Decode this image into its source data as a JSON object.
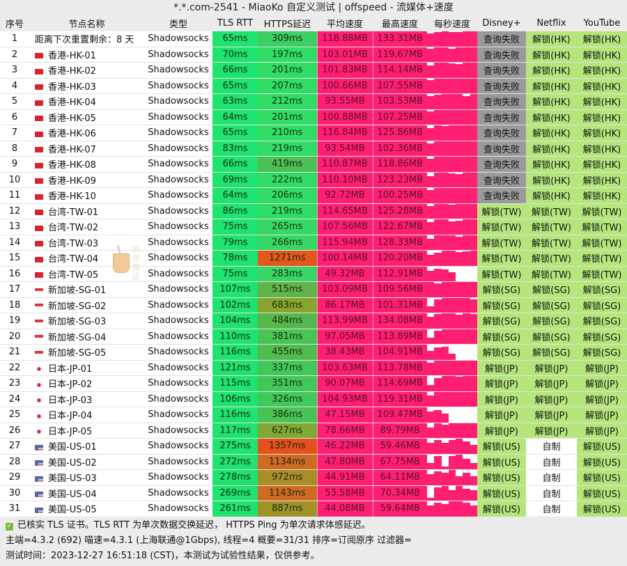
{
  "window": {
    "title": "*.*.com-2541 - MiaoKo 自定义测试 | offspeed - 流媒体+速度"
  },
  "columns": [
    "序号",
    "节点名称",
    "类型",
    "TLS RTT",
    "HTTPS延迟",
    "平均速度",
    "最高速度",
    "每秒速度",
    "Disney+",
    "Netflix",
    "YouTube"
  ],
  "colors": {
    "tls_green": "#1fe36f",
    "https_green": "#3ad36a",
    "https_olive": "#8aa52e",
    "https_orange": "#e2581c",
    "speed_pink": "#ff1f72",
    "fail_gray": "#9a9a9a",
    "unlock_green": "#b5e67c",
    "selfmade_white": "#ffffff"
  },
  "rows": [
    {
      "idx": "1",
      "flag": "",
      "name": "距离下次重置剩余：8 天",
      "type": "Shadowsocks",
      "tls": "65ms",
      "https": "309ms",
      "https_color": "#3bcf64",
      "avg": "118.88MB",
      "max": "133.31MB",
      "spark": [
        88,
        96,
        100,
        94,
        94,
        100,
        100
      ],
      "disney": "查询失败",
      "disney_color": "#9a9a9a",
      "netflix": "解锁(HK)",
      "netflix_color": "#b5e67c",
      "youtube": "解锁(HK)",
      "youtube_color": "#b5e67c"
    },
    {
      "idx": "2",
      "flag": "hk",
      "name": "香港-HK-01",
      "type": "Shadowsocks",
      "tls": "70ms",
      "https": "197ms",
      "https_color": "#2fdc66",
      "avg": "103.01MB",
      "max": "119.67MB",
      "spark": [
        88,
        100,
        100,
        90,
        100,
        100,
        100
      ],
      "disney": "查询失败",
      "disney_color": "#9a9a9a",
      "netflix": "解锁(HK)",
      "netflix_color": "#b5e67c",
      "youtube": "解锁(HK)",
      "youtube_color": "#b5e67c"
    },
    {
      "idx": "3",
      "flag": "hk",
      "name": "香港-HK-02",
      "type": "Shadowsocks",
      "tls": "66ms",
      "https": "201ms",
      "https_color": "#2fdc66",
      "avg": "101.83MB",
      "max": "114.14MB",
      "spark": [
        82,
        100,
        100,
        96,
        90,
        100,
        100
      ],
      "disney": "查询失败",
      "disney_color": "#9a9a9a",
      "netflix": "解锁(HK)",
      "netflix_color": "#b5e67c",
      "youtube": "解锁(HK)",
      "youtube_color": "#b5e67c"
    },
    {
      "idx": "4",
      "flag": "hk",
      "name": "香港-HK-03",
      "type": "Shadowsocks",
      "tls": "65ms",
      "https": "207ms",
      "https_color": "#2fdc66",
      "avg": "100.66MB",
      "max": "107.55MB",
      "spark": [
        88,
        100,
        100,
        100,
        100,
        100,
        100
      ],
      "disney": "查询失败",
      "disney_color": "#9a9a9a",
      "netflix": "解锁(HK)",
      "netflix_color": "#b5e67c",
      "youtube": "解锁(HK)",
      "youtube_color": "#b5e67c"
    },
    {
      "idx": "5",
      "flag": "hk",
      "name": "香港-HK-04",
      "type": "Shadowsocks",
      "tls": "63ms",
      "https": "212ms",
      "https_color": "#2fdc66",
      "avg": "93.55MB",
      "max": "103.53MB",
      "spark": [
        84,
        96,
        100,
        100,
        100,
        88,
        100
      ],
      "disney": "查询失败",
      "disney_color": "#9a9a9a",
      "netflix": "解锁(HK)",
      "netflix_color": "#b5e67c",
      "youtube": "解锁(HK)",
      "youtube_color": "#b5e67c"
    },
    {
      "idx": "6",
      "flag": "hk",
      "name": "香港-HK-05",
      "type": "Shadowsocks",
      "tls": "64ms",
      "https": "201ms",
      "https_color": "#2fdc66",
      "avg": "100.88MB",
      "max": "107.25MB",
      "spark": [
        88,
        100,
        100,
        100,
        100,
        100,
        100
      ],
      "disney": "查询失败",
      "disney_color": "#9a9a9a",
      "netflix": "解锁(HK)",
      "netflix_color": "#b5e67c",
      "youtube": "解锁(HK)",
      "youtube_color": "#b5e67c"
    },
    {
      "idx": "7",
      "flag": "hk",
      "name": "香港-HK-06",
      "type": "Shadowsocks",
      "tls": "65ms",
      "https": "210ms",
      "https_color": "#2fdc66",
      "avg": "116.84MB",
      "max": "125.86MB",
      "spark": [
        80,
        100,
        96,
        100,
        100,
        100,
        100
      ],
      "disney": "查询失败",
      "disney_color": "#9a9a9a",
      "netflix": "解锁(HK)",
      "netflix_color": "#b5e67c",
      "youtube": "解锁(HK)",
      "youtube_color": "#b5e67c"
    },
    {
      "idx": "8",
      "flag": "hk",
      "name": "香港-HK-07",
      "type": "Shadowsocks",
      "tls": "83ms",
      "https": "219ms",
      "https_color": "#2fdc66",
      "avg": "93.54MB",
      "max": "102.36MB",
      "spark": [
        84,
        100,
        100,
        100,
        100,
        100,
        100
      ],
      "disney": "查询失败",
      "disney_color": "#9a9a9a",
      "netflix": "解锁(HK)",
      "netflix_color": "#b5e67c",
      "youtube": "解锁(HK)",
      "youtube_color": "#b5e67c"
    },
    {
      "idx": "9",
      "flag": "hk",
      "name": "香港-HK-08",
      "type": "Shadowsocks",
      "tls": "66ms",
      "https": "419ms",
      "https_color": "#4cbf55",
      "avg": "110.87MB",
      "max": "118.86MB",
      "spark": [
        84,
        100,
        100,
        100,
        100,
        100,
        100
      ],
      "disney": "查询失败",
      "disney_color": "#9a9a9a",
      "netflix": "解锁(HK)",
      "netflix_color": "#b5e67c",
      "youtube": "解锁(HK)",
      "youtube_color": "#b5e67c"
    },
    {
      "idx": "10",
      "flag": "hk",
      "name": "香港-HK-09",
      "type": "Shadowsocks",
      "tls": "69ms",
      "https": "222ms",
      "https_color": "#2fdc66",
      "avg": "110.10MB",
      "max": "123.23MB",
      "spark": [
        76,
        100,
        100,
        94,
        88,
        100,
        100
      ],
      "disney": "查询失败",
      "disney_color": "#9a9a9a",
      "netflix": "解锁(HK)",
      "netflix_color": "#b5e67c",
      "youtube": "解锁(HK)",
      "youtube_color": "#b5e67c"
    },
    {
      "idx": "11",
      "flag": "hk",
      "name": "香港-HK-10",
      "type": "Shadowsocks",
      "tls": "64ms",
      "https": "206ms",
      "https_color": "#2fdc66",
      "avg": "92.72MB",
      "max": "100.25MB",
      "spark": [
        84,
        100,
        100,
        100,
        100,
        100,
        100
      ],
      "disney": "查询失败",
      "disney_color": "#9a9a9a",
      "netflix": "解锁(HK)",
      "netflix_color": "#b5e67c",
      "youtube": "解锁(HK)",
      "youtube_color": "#b5e67c"
    },
    {
      "idx": "12",
      "flag": "tw",
      "name": "台湾-TW-01",
      "type": "Shadowsocks",
      "tls": "86ms",
      "https": "219ms",
      "https_color": "#2fdc66",
      "avg": "114.65MB",
      "max": "125.28MB",
      "spark": [
        86,
        100,
        100,
        92,
        100,
        100,
        100
      ],
      "disney": "解锁(TW)",
      "disney_color": "#b5e67c",
      "netflix": "解锁(TW)",
      "netflix_color": "#b5e67c",
      "youtube": "解锁(TW)",
      "youtube_color": "#b5e67c"
    },
    {
      "idx": "13",
      "flag": "tw",
      "name": "台湾-TW-02",
      "type": "Shadowsocks",
      "tls": "75ms",
      "https": "265ms",
      "https_color": "#36d865",
      "avg": "107.56MB",
      "max": "122.67MB",
      "spark": [
        80,
        100,
        100,
        88,
        90,
        100,
        100
      ],
      "disney": "解锁(TW)",
      "disney_color": "#b5e67c",
      "netflix": "解锁(TW)",
      "netflix_color": "#b5e67c",
      "youtube": "解锁(TW)",
      "youtube_color": "#b5e67c"
    },
    {
      "idx": "14",
      "flag": "tw",
      "name": "台湾-TW-03",
      "type": "Shadowsocks",
      "tls": "79ms",
      "https": "266ms",
      "https_color": "#36d865",
      "avg": "115.94MB",
      "max": "128.33MB",
      "spark": [
        76,
        100,
        100,
        100,
        90,
        100,
        100
      ],
      "disney": "解锁(TW)",
      "disney_color": "#b5e67c",
      "netflix": "解锁(TW)",
      "netflix_color": "#b5e67c",
      "youtube": "解锁(TW)",
      "youtube_color": "#b5e67c"
    },
    {
      "idx": "15",
      "flag": "tw",
      "name": "台湾-TW-04",
      "type": "Shadowsocks",
      "tls": "78ms",
      "https": "1271ms",
      "https_color": "#e2581c",
      "avg": "100.14MB",
      "max": "120.20MB",
      "spark": [
        70,
        86,
        100,
        100,
        90,
        96,
        100
      ],
      "disney": "解锁(TW)",
      "disney_color": "#b5e67c",
      "netflix": "解锁(TW)",
      "netflix_color": "#b5e67c",
      "youtube": "解锁(TW)",
      "youtube_color": "#b5e67c"
    },
    {
      "idx": "16",
      "flag": "tw",
      "name": "台湾-TW-05",
      "type": "Shadowsocks",
      "tls": "75ms",
      "https": "283ms",
      "https_color": "#38d665",
      "avg": "49.32MB",
      "max": "112.91MB",
      "spark": [
        70,
        86,
        78,
        60,
        0,
        0,
        0
      ],
      "disney": "解锁(TW)",
      "disney_color": "#b5e67c",
      "netflix": "解锁(TW)",
      "netflix_color": "#b5e67c",
      "youtube": "解锁(TW)",
      "youtube_color": "#b5e67c"
    },
    {
      "idx": "17",
      "flag": "sg",
      "name": "新加坡-SG-01",
      "type": "Shadowsocks",
      "tls": "107ms",
      "https": "515ms",
      "https_color": "#5fb44a",
      "avg": "103.09MB",
      "max": "109.56MB",
      "spark": [
        100,
        90,
        100,
        100,
        100,
        100,
        100
      ],
      "disney": "解锁(SG)",
      "disney_color": "#b5e67c",
      "netflix": "解锁(SG)",
      "netflix_color": "#b5e67c",
      "youtube": "解锁(SG)",
      "youtube_color": "#b5e67c"
    },
    {
      "idx": "18",
      "flag": "sg",
      "name": "新加坡-SG-02",
      "type": "Shadowsocks",
      "tls": "102ms",
      "https": "683ms",
      "https_color": "#8aa52e",
      "avg": "86.17MB",
      "max": "101.31MB",
      "spark": [
        40,
        90,
        100,
        100,
        100,
        100,
        90
      ],
      "disney": "解锁(SG)",
      "disney_color": "#b5e67c",
      "netflix": "解锁(SG)",
      "netflix_color": "#b5e67c",
      "youtube": "解锁(SG)",
      "youtube_color": "#b5e67c"
    },
    {
      "idx": "19",
      "flag": "sg",
      "name": "新加坡-SG-03",
      "type": "Shadowsocks",
      "tls": "104ms",
      "https": "484ms",
      "https_color": "#56b84c",
      "avg": "113.99MB",
      "max": "134.08MB",
      "spark": [
        76,
        96,
        100,
        100,
        90,
        100,
        96
      ],
      "disney": "解锁(SG)",
      "disney_color": "#b5e67c",
      "netflix": "解锁(SG)",
      "netflix_color": "#b5e67c",
      "youtube": "解锁(SG)",
      "youtube_color": "#b5e67c"
    },
    {
      "idx": "20",
      "flag": "sg",
      "name": "新加坡-SG-04",
      "type": "Shadowsocks",
      "tls": "110ms",
      "https": "381ms",
      "https_color": "#48c455",
      "avg": "97.05MB",
      "max": "113.89MB",
      "spark": [
        40,
        90,
        100,
        100,
        100,
        100,
        96
      ],
      "disney": "解锁(SG)",
      "disney_color": "#b5e67c",
      "netflix": "解锁(SG)",
      "netflix_color": "#b5e67c",
      "youtube": "解锁(SG)",
      "youtube_color": "#b5e67c"
    },
    {
      "idx": "21",
      "flag": "sg",
      "name": "新加坡-SG-05",
      "type": "Shadowsocks",
      "tls": "116ms",
      "https": "455ms",
      "https_color": "#52bb4e",
      "avg": "38.43MB",
      "max": "104.91MB",
      "spark": [
        60,
        80,
        86,
        40,
        0,
        0,
        0
      ],
      "disney": "解锁(SG)",
      "disney_color": "#b5e67c",
      "netflix": "解锁(SG)",
      "netflix_color": "#b5e67c",
      "youtube": "解锁(SG)",
      "youtube_color": "#b5e67c"
    },
    {
      "idx": "22",
      "flag": "jp",
      "name": "日本-JP-01",
      "type": "Shadowsocks",
      "tls": "121ms",
      "https": "337ms",
      "https_color": "#40c95a",
      "avg": "103.63MB",
      "max": "113.78MB",
      "spark": [
        86,
        100,
        100,
        100,
        100,
        100,
        100
      ],
      "disney": "解锁(JP)",
      "disney_color": "#b5e67c",
      "netflix": "解锁(JP)",
      "netflix_color": "#b5e67c",
      "youtube": "解锁(JP)",
      "youtube_color": "#b5e67c"
    },
    {
      "idx": "23",
      "flag": "jp",
      "name": "日本-JP-02",
      "type": "Shadowsocks",
      "tls": "115ms",
      "https": "351ms",
      "https_color": "#42c858",
      "avg": "90.07MB",
      "max": "114.69MB",
      "spark": [
        40,
        86,
        100,
        100,
        96,
        100,
        100
      ],
      "disney": "解锁(JP)",
      "disney_color": "#b5e67c",
      "netflix": "解锁(JP)",
      "netflix_color": "#b5e67c",
      "youtube": "解锁(JP)",
      "youtube_color": "#b5e67c"
    },
    {
      "idx": "24",
      "flag": "jp",
      "name": "日本-JP-03",
      "type": "Shadowsocks",
      "tls": "106ms",
      "https": "326ms",
      "https_color": "#3fca5b",
      "avg": "104.93MB",
      "max": "119.31MB",
      "spark": [
        76,
        100,
        100,
        100,
        100,
        100,
        100
      ],
      "disney": "解锁(JP)",
      "disney_color": "#b5e67c",
      "netflix": "解锁(JP)",
      "netflix_color": "#b5e67c",
      "youtube": "解锁(JP)",
      "youtube_color": "#b5e67c"
    },
    {
      "idx": "25",
      "flag": "jp",
      "name": "日本-JP-04",
      "type": "Shadowsocks",
      "tls": "116ms",
      "https": "386ms",
      "https_color": "#48c455",
      "avg": "47.15MB",
      "max": "109.47MB",
      "spark": [
        70,
        80,
        60,
        0,
        0,
        0,
        0
      ],
      "disney": "解锁(JP)",
      "disney_color": "#b5e67c",
      "netflix": "解锁(JP)",
      "netflix_color": "#b5e67c",
      "youtube": "解锁(JP)",
      "youtube_color": "#b5e67c"
    },
    {
      "idx": "26",
      "flag": "jp",
      "name": "日本-JP-05",
      "type": "Shadowsocks",
      "tls": "117ms",
      "https": "627ms",
      "https_color": "#7fa834",
      "avg": "78.66MB",
      "max": "89.79MB",
      "spark": [
        70,
        100,
        90,
        100,
        100,
        100,
        96
      ],
      "disney": "解锁(JP)",
      "disney_color": "#b5e67c",
      "netflix": "解锁(JP)",
      "netflix_color": "#b5e67c",
      "youtube": "解锁(JP)",
      "youtube_color": "#b5e67c"
    },
    {
      "idx": "27",
      "flag": "us",
      "name": "美国-US-01",
      "type": "Shadowsocks",
      "tls": "275ms",
      "https": "1357ms",
      "https_color": "#e4511a",
      "avg": "46.22MB",
      "max": "59.46MB",
      "spark": [
        70,
        90,
        70,
        90,
        100,
        80,
        60
      ],
      "disney": "解锁(US)",
      "disney_color": "#b5e67c",
      "netflix": "自制",
      "netflix_color": "#ffffff",
      "youtube": "解锁(US)",
      "youtube_color": "#b5e67c"
    },
    {
      "idx": "28",
      "flag": "us",
      "name": "美国-US-02",
      "type": "Shadowsocks",
      "tls": "272ms",
      "https": "1134ms",
      "https_color": "#cf6a22",
      "avg": "47.80MB",
      "max": "67.75MB",
      "spark": [
        40,
        90,
        20,
        90,
        100,
        70,
        40
      ],
      "disney": "解锁(US)",
      "disney_color": "#b5e67c",
      "netflix": "自制",
      "netflix_color": "#ffffff",
      "youtube": "解锁(US)",
      "youtube_color": "#b5e67c"
    },
    {
      "idx": "29",
      "flag": "us",
      "name": "美国-US-03",
      "type": "Shadowsocks",
      "tls": "278ms",
      "https": "972ms",
      "https_color": "#a98d29",
      "avg": "44.91MB",
      "max": "64.11MB",
      "spark": [
        70,
        90,
        80,
        100,
        60,
        80,
        60
      ],
      "disney": "解锁(US)",
      "disney_color": "#b5e67c",
      "netflix": "自制",
      "netflix_color": "#ffffff",
      "youtube": "解锁(US)",
      "youtube_color": "#b5e67c"
    },
    {
      "idx": "30",
      "flag": "us",
      "name": "美国-US-04",
      "type": "Shadowsocks",
      "tls": "269ms",
      "https": "1143ms",
      "https_color": "#cf6a22",
      "avg": "53.58MB",
      "max": "70.34MB",
      "spark": [
        20,
        90,
        100,
        70,
        100,
        80,
        70
      ],
      "disney": "解锁(US)",
      "disney_color": "#b5e67c",
      "netflix": "自制",
      "netflix_color": "#ffffff",
      "youtube": "解锁(US)",
      "youtube_color": "#b5e67c"
    },
    {
      "idx": "31",
      "flag": "us",
      "name": "美国-US-05",
      "type": "Shadowsocks",
      "tls": "261ms",
      "https": "887ms",
      "https_color": "#9f9229",
      "avg": "44.08MB",
      "max": "59.64MB",
      "spark": [
        70,
        90,
        80,
        100,
        100,
        90,
        70
      ],
      "disney": "解锁(US)",
      "disney_color": "#b5e67c",
      "netflix": "自制",
      "netflix_color": "#ffffff",
      "youtube": "解锁(US)",
      "youtube_color": "#b5e67c"
    }
  ],
  "watermark": {
    "text": "奶茶探店"
  },
  "footer": {
    "line1": "已核实 TLS 证书。TLS RTT 为单次数据交换延迟， HTTPS Ping 为单次请求体感延迟。",
    "line2": "主端=4.3.2 (692) 喵速=4.3.1 (上海联通@1Gbps), 线程=4 概要=31/31 排序=订阅原序 过滤器=",
    "line3": "测试时间：2023-12-27 16:51:18 (CST)，本测试为试验性结果，仅供参考。",
    "check_icon": "✓"
  }
}
